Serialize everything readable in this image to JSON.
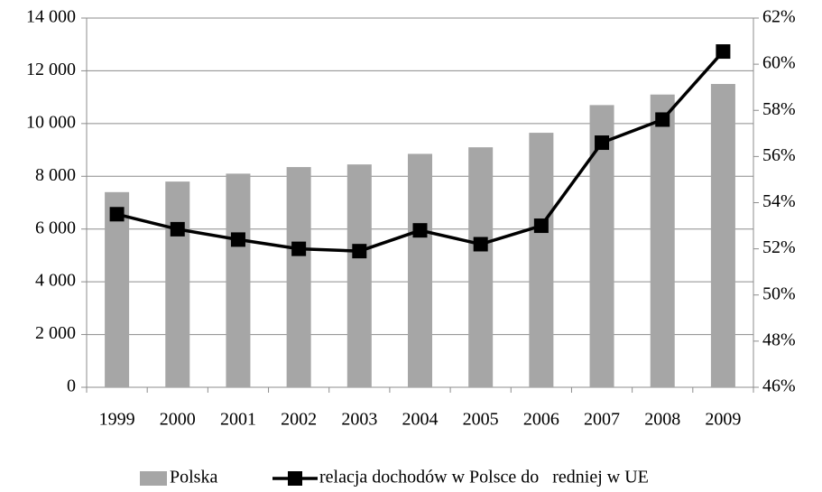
{
  "chart_data": {
    "type": "bar_line",
    "categories": [
      "1999",
      "2000",
      "2001",
      "2002",
      "2003",
      "2004",
      "2005",
      "2006",
      "2007",
      "2008",
      "2009"
    ],
    "series": [
      {
        "name": "Polska",
        "type": "bar",
        "color": "#a6a6a6",
        "values": [
          7400,
          7800,
          8100,
          8350,
          8450,
          8850,
          9100,
          9650,
          10700,
          11100,
          11500
        ]
      },
      {
        "name": "relacja dochodów w Polsce do   redniej w UE",
        "type": "line",
        "axis": "y2",
        "color": "#000000",
        "values": [
          53.5,
          52.85,
          52.4,
          52.0,
          51.9,
          52.8,
          52.2,
          53.0,
          56.6,
          57.6,
          60.55
        ]
      }
    ],
    "ylim": [
      0,
      14000
    ],
    "yticks": [
      0,
      {
        "value": 2000,
        "label": "2 000"
      },
      {
        "value": 4000,
        "label": "4 000"
      },
      {
        "value": 6000,
        "label": "6 000"
      },
      {
        "value": 8000,
        "label": "8 000"
      },
      {
        "value": 10000,
        "label": "10 000"
      },
      {
        "value": 12000,
        "label": "12 000"
      },
      {
        "value": 14000,
        "label": "14 000"
      }
    ],
    "y2lim": [
      46,
      62
    ],
    "y2ticks": [
      {
        "value": 46,
        "label": "46%"
      },
      {
        "value": 48,
        "label": "48%"
      },
      {
        "value": 50,
        "label": "50%"
      },
      {
        "value": 52,
        "label": "52%"
      },
      {
        "value": 54,
        "label": "54%"
      },
      {
        "value": 56,
        "label": "56%"
      },
      {
        "value": 58,
        "label": "58%"
      },
      {
        "value": 60,
        "label": "60%"
      },
      {
        "value": 62,
        "label": "62%"
      }
    ],
    "grid": true,
    "legend": "bottom"
  }
}
